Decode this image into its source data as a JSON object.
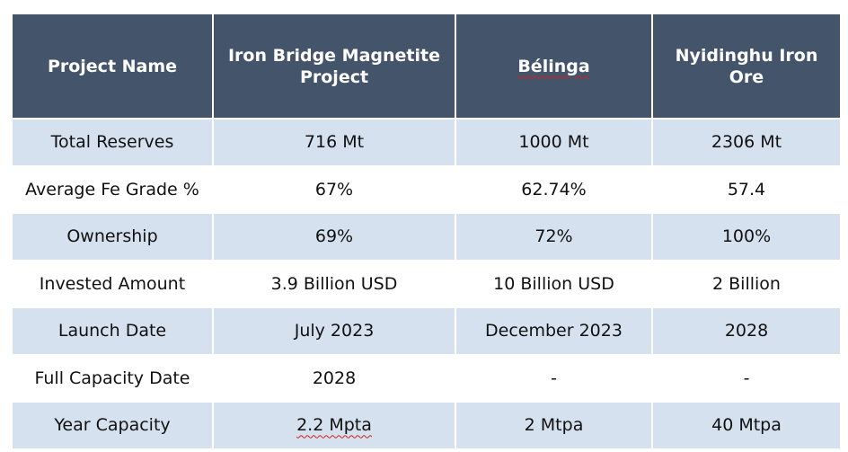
{
  "table": {
    "headers": [
      "Project Name",
      "Iron Bridge Magnetite Project",
      "Bélinga",
      "Nyidinghu Iron Ore"
    ],
    "rows": [
      [
        "Total Reserves",
        "716 Mt",
        "1000 Mt",
        "2306 Mt"
      ],
      [
        "Average Fe Grade %",
        "67%",
        "62.74%",
        "57.4"
      ],
      [
        "Ownership",
        "69%",
        "72%",
        "100%"
      ],
      [
        "Invested Amount",
        "3.9 Billion USD",
        "10 Billion USD",
        "2 Billion"
      ],
      [
        "Launch Date",
        "July 2023",
        "December 2023",
        "2028"
      ],
      [
        "Full Capacity Date",
        "2028",
        "-",
        "-"
      ],
      [
        "Year Capacity",
        "2.2 Mpta",
        "2 Mtpa",
        "40 Mtpa"
      ]
    ]
  },
  "colors": {
    "header_bg": "#44546a",
    "shaded_row_bg": "#d6e1ef",
    "plain_row_bg": "#ffffff"
  }
}
